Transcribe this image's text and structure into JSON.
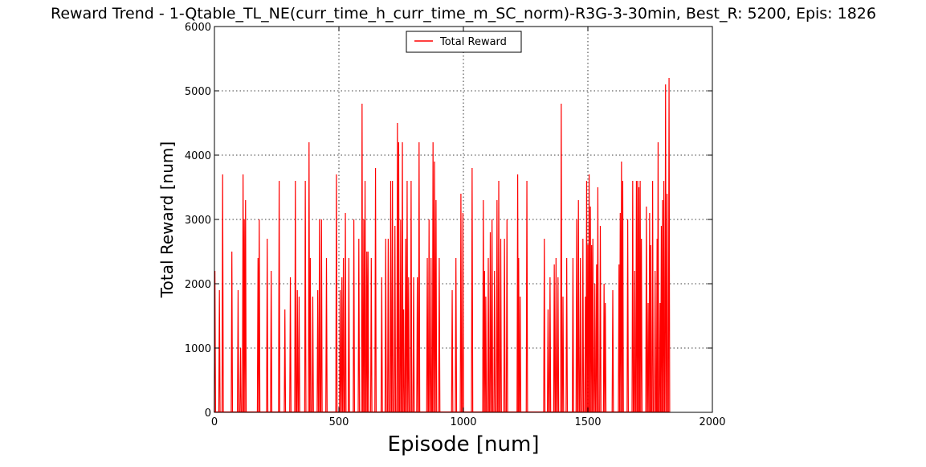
{
  "chart_data": {
    "type": "line",
    "title": "Reward Trend - 1-Qtable_TL_NE(curr_time_h_curr_time_m_SC_norm)-R3G-3-30min, Best_R: 5200, Epis: 1826",
    "xlabel": "Episode [num]",
    "ylabel": "Total Reward [num]",
    "xlim": [
      0,
      2000
    ],
    "ylim": [
      0,
      6000
    ],
    "xticks": [
      0,
      500,
      1000,
      1500,
      2000
    ],
    "yticks": [
      0,
      1000,
      2000,
      3000,
      4000,
      5000,
      6000
    ],
    "grid": true,
    "legend_position": "upper center",
    "series": [
      {
        "name": "Total Reward",
        "color": "#ff0000",
        "spikes": [
          [
            2,
            2200
          ],
          [
            20,
            1900
          ],
          [
            33,
            3700
          ],
          [
            70,
            2500
          ],
          [
            95,
            1900
          ],
          [
            105,
            1000
          ],
          [
            115,
            3700
          ],
          [
            120,
            3000
          ],
          [
            125,
            3300
          ],
          [
            175,
            2400
          ],
          [
            180,
            3000
          ],
          [
            212,
            2700
          ],
          [
            228,
            2200
          ],
          [
            260,
            3600
          ],
          [
            283,
            1600
          ],
          [
            305,
            2100
          ],
          [
            325,
            3600
          ],
          [
            333,
            1900
          ],
          [
            340,
            1800
          ],
          [
            365,
            3600
          ],
          [
            380,
            4200
          ],
          [
            385,
            2400
          ],
          [
            395,
            1800
          ],
          [
            415,
            1900
          ],
          [
            422,
            3000
          ],
          [
            430,
            3000
          ],
          [
            450,
            2400
          ],
          [
            490,
            3700
          ],
          [
            505,
            1900
          ],
          [
            512,
            2100
          ],
          [
            518,
            2400
          ],
          [
            526,
            3100
          ],
          [
            540,
            2400
          ],
          [
            560,
            3000
          ],
          [
            580,
            2700
          ],
          [
            593,
            4800
          ],
          [
            600,
            3000
          ],
          [
            605,
            3600
          ],
          [
            612,
            2500
          ],
          [
            617,
            2500
          ],
          [
            630,
            2400
          ],
          [
            647,
            3800
          ],
          [
            672,
            2100
          ],
          [
            688,
            2700
          ],
          [
            698,
            2700
          ],
          [
            708,
            3600
          ],
          [
            715,
            3600
          ],
          [
            725,
            2900
          ],
          [
            735,
            4500
          ],
          [
            740,
            4200
          ],
          [
            748,
            3000
          ],
          [
            755,
            4200
          ],
          [
            760,
            1600
          ],
          [
            768,
            2700
          ],
          [
            774,
            3600
          ],
          [
            780,
            2100
          ],
          [
            790,
            3600
          ],
          [
            800,
            2100
          ],
          [
            815,
            2100
          ],
          [
            822,
            4200
          ],
          [
            855,
            2400
          ],
          [
            862,
            3000
          ],
          [
            870,
            2400
          ],
          [
            878,
            4200
          ],
          [
            884,
            3900
          ],
          [
            890,
            3300
          ],
          [
            903,
            2400
          ],
          [
            955,
            1900
          ],
          [
            970,
            2400
          ],
          [
            990,
            3400
          ],
          [
            998,
            3100
          ],
          [
            1035,
            3800
          ],
          [
            1080,
            3300
          ],
          [
            1085,
            2200
          ],
          [
            1090,
            1800
          ],
          [
            1100,
            2400
          ],
          [
            1108,
            2800
          ],
          [
            1115,
            3000
          ],
          [
            1125,
            2200
          ],
          [
            1135,
            3300
          ],
          [
            1142,
            3600
          ],
          [
            1150,
            2700
          ],
          [
            1165,
            2700
          ],
          [
            1175,
            3000
          ],
          [
            1218,
            3700
          ],
          [
            1222,
            2400
          ],
          [
            1228,
            1800
          ],
          [
            1255,
            3600
          ],
          [
            1325,
            2700
          ],
          [
            1340,
            1600
          ],
          [
            1348,
            2100
          ],
          [
            1365,
            2300
          ],
          [
            1372,
            2400
          ],
          [
            1380,
            2100
          ],
          [
            1393,
            4800
          ],
          [
            1400,
            1800
          ],
          [
            1415,
            2400
          ],
          [
            1440,
            2400
          ],
          [
            1455,
            3000
          ],
          [
            1462,
            3300
          ],
          [
            1470,
            2400
          ],
          [
            1480,
            2700
          ],
          [
            1490,
            1800
          ],
          [
            1495,
            3600
          ],
          [
            1500,
            2600
          ],
          [
            1505,
            3700
          ],
          [
            1510,
            3200
          ],
          [
            1515,
            2600
          ],
          [
            1520,
            2700
          ],
          [
            1528,
            2000
          ],
          [
            1535,
            2300
          ],
          [
            1540,
            3500
          ],
          [
            1550,
            2900
          ],
          [
            1565,
            2000
          ],
          [
            1570,
            1700
          ],
          [
            1600,
            1900
          ],
          [
            1625,
            2300
          ],
          [
            1630,
            3100
          ],
          [
            1635,
            3900
          ],
          [
            1640,
            3600
          ],
          [
            1660,
            3000
          ],
          [
            1680,
            3600
          ],
          [
            1688,
            2200
          ],
          [
            1695,
            3600
          ],
          [
            1700,
            3600
          ],
          [
            1705,
            3500
          ],
          [
            1710,
            3600
          ],
          [
            1715,
            2700
          ],
          [
            1735,
            3200
          ],
          [
            1742,
            1700
          ],
          [
            1748,
            3100
          ],
          [
            1752,
            2600
          ],
          [
            1760,
            3600
          ],
          [
            1770,
            2200
          ],
          [
            1778,
            2700
          ],
          [
            1782,
            4200
          ],
          [
            1790,
            1700
          ],
          [
            1795,
            2900
          ],
          [
            1800,
            3300
          ],
          [
            1805,
            3600
          ],
          [
            1812,
            5100
          ],
          [
            1818,
            3400
          ],
          [
            1826,
            5200
          ]
        ]
      }
    ]
  }
}
